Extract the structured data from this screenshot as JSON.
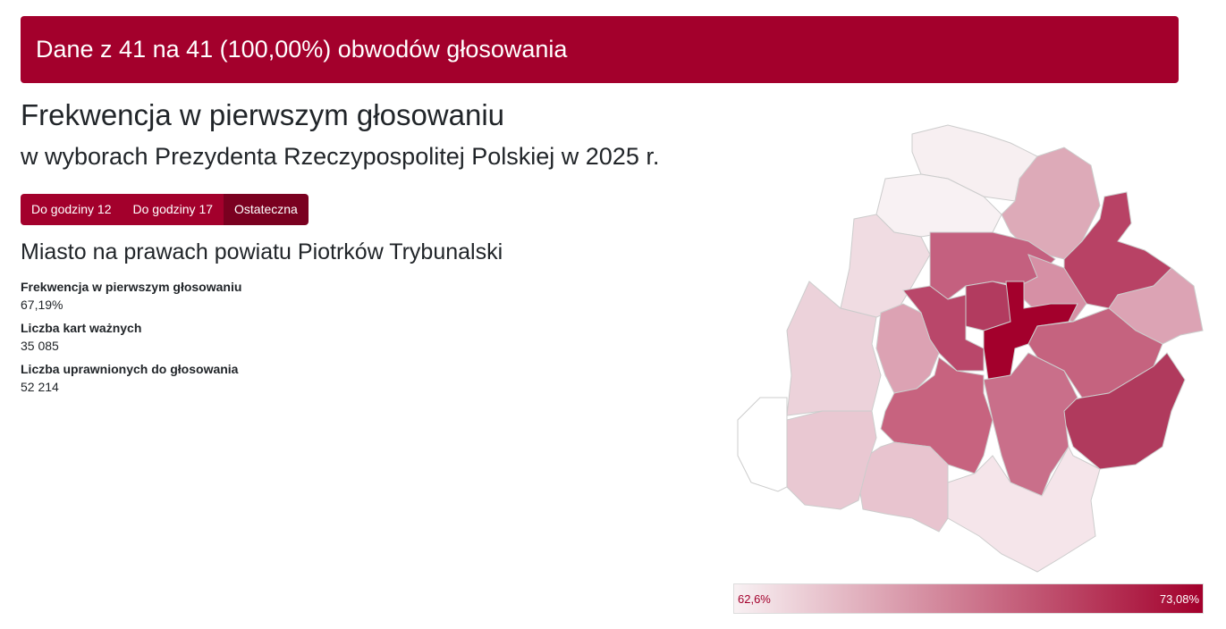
{
  "banner": "Dane z 41 na 41 (100,00%) obwodów głosowania",
  "title": "Frekwencja w pierwszym głosowaniu",
  "subtitle": "w wyborach Prezydenta Rzeczypospolitej Polskiej w 2025 r.",
  "buttons": [
    "Do godziny 12",
    "Do godziny 17",
    "Ostateczna"
  ],
  "region": "Miasto na prawach powiatu Piotrków Trybunalski",
  "stats": [
    {
      "label": "Frekwencja w pierwszym głosowaniu",
      "value": "67,19%"
    },
    {
      "label": "Liczba kart ważnych",
      "value": "35 085"
    },
    {
      "label": "Liczba uprawnionych do głosowania",
      "value": "52 214"
    }
  ],
  "legend": {
    "min": "62,6%",
    "max": "73,08%"
  }
}
